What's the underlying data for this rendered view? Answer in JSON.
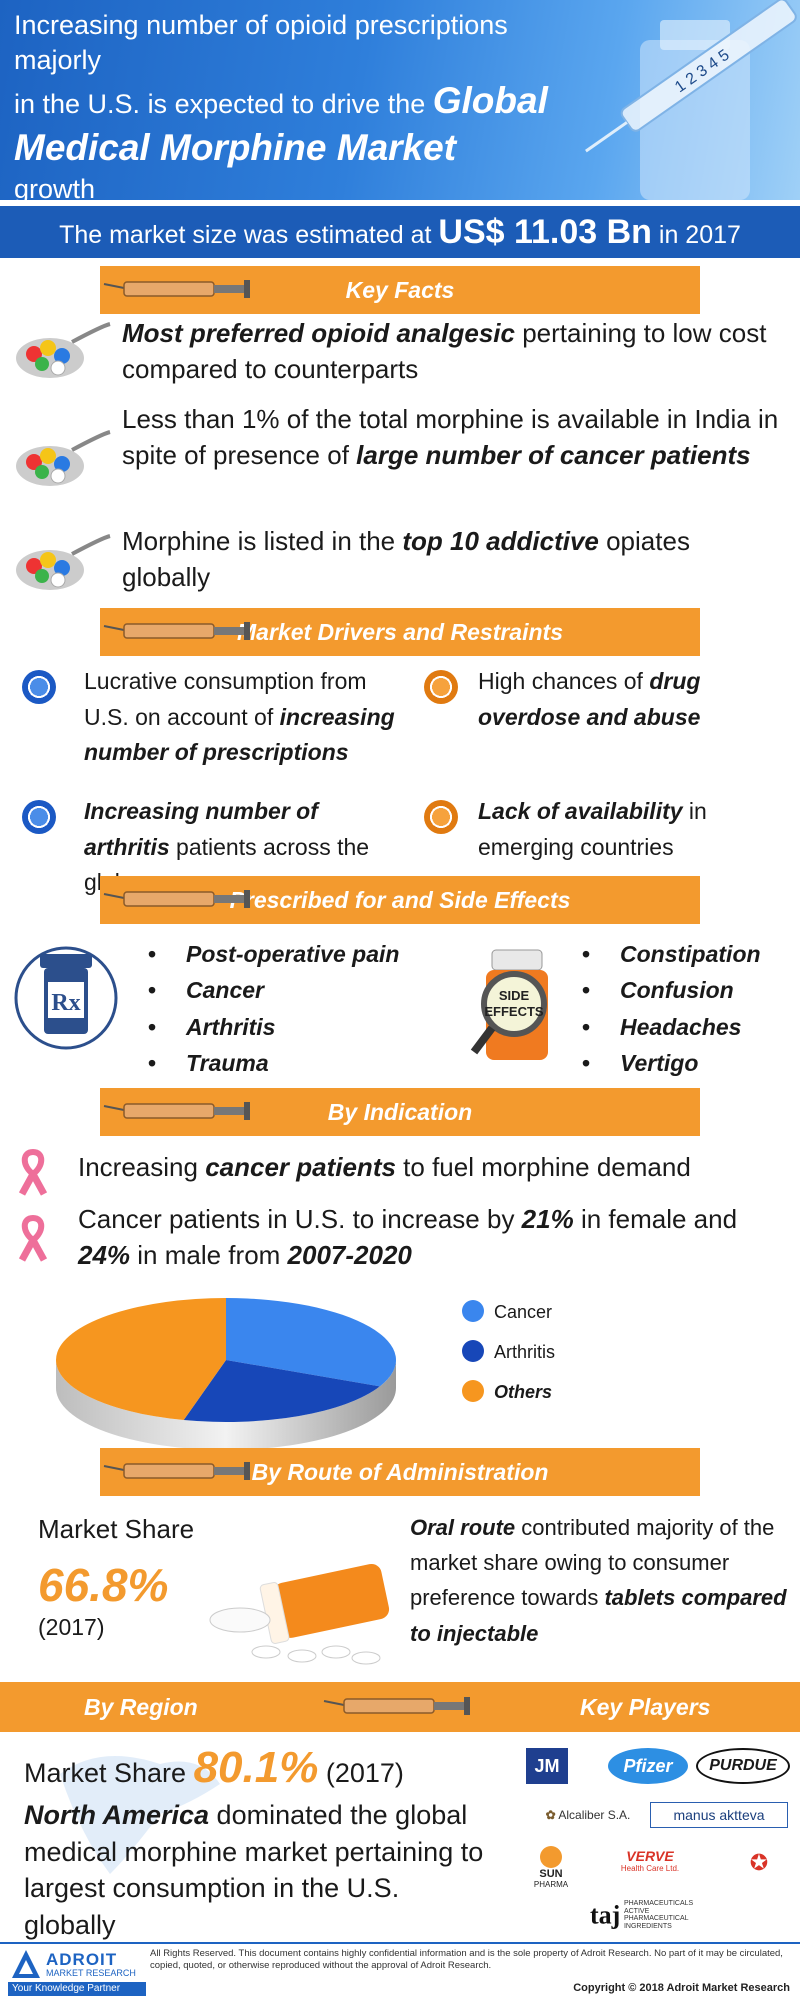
{
  "header": {
    "line1": "Increasing number of opioid prescriptions majorly",
    "line2_pre": "in the U.S. is expected to drive the",
    "line2_bold": "Global",
    "line3_bold": "Medical Morphine Market",
    "line4": "growth"
  },
  "market_size": {
    "prefix": "The market size was estimated at",
    "amount": "US$ 11.03 Bn",
    "suffix": "in 2017"
  },
  "sections": {
    "key_facts": "Key Facts",
    "drivers": "Market Drivers and Restraints",
    "prescribed": "Prescribed for and Side Effects",
    "indication": "By Indication",
    "route": "By Route of Administration",
    "region": "By Region",
    "players": "Key Players"
  },
  "key_facts": [
    {
      "bold": "Most preferred opioid analgesic",
      "text": " pertaining to low cost compared to counterparts"
    },
    {
      "text": "Less than 1% of the total morphine is available in India in spite of presence of ",
      "bold": "large number of cancer patients"
    },
    {
      "text": "Morphine is listed in the ",
      "bold": "top 10 addictive",
      "text2": " opiates globally"
    }
  ],
  "drivers": {
    "d1_text": "Lucrative consumption from U.S. on account of ",
    "d1_bold": "increasing number of prescriptions",
    "d2_bold": "Increasing number of arthritis",
    "d2_text": " patients across the globe",
    "r1_text": "High chances of ",
    "r1_bold": "drug overdose and abuse",
    "r2_bold": "Lack of availability",
    "r2_text": " in emerging countries"
  },
  "prescribed_for": [
    "Post-operative pain",
    "Cancer",
    "Arthritis",
    "Trauma"
  ],
  "side_effects": [
    "Constipation",
    "Confusion",
    "Headaches",
    "Vertigo"
  ],
  "side_effects_label": [
    "SIDE",
    "EFFECTS"
  ],
  "rx_label": "Rx",
  "indication": {
    "i1_pre": "Increasing ",
    "i1_bold": "cancer patients",
    "i1_post": " to fuel morphine demand",
    "i2_pre": "Cancer patients in U.S. to increase by ",
    "i2_b1": "21%",
    "i2_mid": " in female and ",
    "i2_b2": "24%",
    "i2_mid2": " in male from ",
    "i2_b3": "2007-2020"
  },
  "chart_data": {
    "type": "pie",
    "categories": [
      "Cancer",
      "Arthritis",
      "Others"
    ],
    "values": [
      32,
      22,
      46
    ],
    "colors": [
      "#3a86ee",
      "#1747b8",
      "#f6961f"
    ],
    "title": ""
  },
  "route": {
    "ms_label": "Market Share",
    "ms_value": "66.8%",
    "ms_year": "(2017)",
    "text_bold1": "Oral route",
    "text1": " contributed majority of the market share owing to consumer preference towards ",
    "text_bold2": "tablets compared to injectable"
  },
  "region": {
    "ms_label": "Market Share ",
    "ms_value": "80.1%",
    "ms_year": " (2017)",
    "bold": "North America",
    "text": " dominated the global medical morphine market pertaining to largest consumption in the U.S. globally"
  },
  "players": {
    "jm": "JM",
    "pfizer": "Pfizer",
    "purdue": "PURDUE",
    "alcaliber": "Alcaliber S.A.",
    "manus": "manus aktteva",
    "sun": "SUN",
    "sun_sub": "PHARMA",
    "verve": "VERVE",
    "verve_sub": "Health Care Ltd.",
    "taj": "taj",
    "taj_sub": "PHARMACEUTICALS ACTIVE PHARMACEUTICAL INGREDIENTS"
  },
  "footer": {
    "logo_name": "ADROIT",
    "logo_sub": "MARKET RESEARCH",
    "logo_tag": "Your Knowledge Partner",
    "note": "All Rights Reserved. This document contains highly confidential information and is the sole property of Adroit Research. No part of it may be circulated, copied, quoted, or otherwise reproduced without the approval of Adroit Research.",
    "copyright": "Copyright © 2018 Adroit Market Research"
  }
}
